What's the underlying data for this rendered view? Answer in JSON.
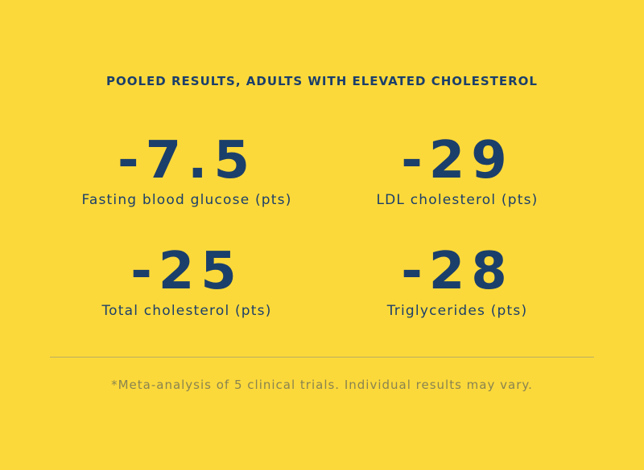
{
  "header": {
    "title": "POOLED RESULTS, ADULTS WITH ELEVATED CHOLESTEROL"
  },
  "stats": [
    {
      "value": "-7.5",
      "label": "Fasting blood glucose (pts)"
    },
    {
      "value": "-29",
      "label": "LDL cholesterol (pts)"
    },
    {
      "value": "-25",
      "label": "Total cholesterol (pts)"
    },
    {
      "value": "-28",
      "label": "Triglycerides (pts)"
    }
  ],
  "footnote": "*Meta-analysis of 5 clinical trials. Individual results may vary."
}
